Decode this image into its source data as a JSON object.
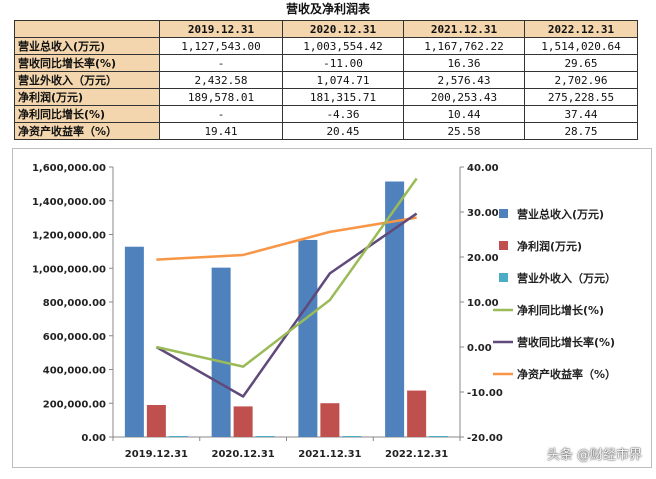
{
  "table": {
    "title": "营收及净利润表",
    "headers": [
      "2019.12.31",
      "2020.12.31",
      "2021.12.31",
      "2022.12.31"
    ],
    "rows": [
      {
        "label": "营业总收入(万元)",
        "values": [
          "1,127,543.00",
          "1,003,554.42",
          "1,167,762.22",
          "1,514,020.64"
        ]
      },
      {
        "label": "营收同比增长率(%)",
        "values": [
          "-",
          "-11.00",
          "16.36",
          "29.65"
        ]
      },
      {
        "label": "营业外收入（万元）",
        "values": [
          "2,432.58",
          "1,074.71",
          "2,576.43",
          "2,702.96"
        ]
      },
      {
        "label": "净利润(万元)",
        "values": [
          "189,578.01",
          "181,315.71",
          "200,253.43",
          "275,228.55"
        ]
      },
      {
        "label": "净利同比增长(%)",
        "values": [
          "-",
          "-4.36",
          "10.44",
          "37.44"
        ]
      },
      {
        "label": "净资产收益率（%）",
        "values": [
          "19.41",
          "20.45",
          "25.58",
          "28.75"
        ]
      }
    ]
  },
  "chart_data": {
    "type": "bar",
    "categories": [
      "2019.12.31",
      "2020.12.31",
      "2021.12.31",
      "2022.12.31"
    ],
    "y_left": {
      "min": 0,
      "max": 1600000,
      "step": 200000,
      "tick_labels": [
        "0.00",
        "200,000.00",
        "400,000.00",
        "600,000.00",
        "800,000.00",
        "1,000,000.00",
        "1,200,000.00",
        "1,400,000.00",
        "1,600,000.00"
      ]
    },
    "y_right": {
      "min": -20,
      "max": 40,
      "step": 10,
      "tick_labels": [
        "-20.00",
        "-10.00",
        "0.00",
        "10.00",
        "20.00",
        "30.00",
        "40.00"
      ]
    },
    "bar_series": [
      {
        "name": "营业总收入(万元)",
        "color": "#4f81bd",
        "values": [
          1127543.0,
          1003554.42,
          1167762.22,
          1514020.64
        ]
      },
      {
        "name": "净利润(万元)",
        "color": "#c0504d",
        "values": [
          189578.01,
          181315.71,
          200253.43,
          275228.55
        ]
      },
      {
        "name": "营业外收入（万元）",
        "color": "#4bacc6",
        "values": [
          2432.58,
          1074.71,
          2576.43,
          2702.96
        ]
      }
    ],
    "line_series": [
      {
        "name": "净利同比增长(%)",
        "color": "#9bbb59",
        "values": [
          0,
          -4.36,
          10.44,
          37.44
        ]
      },
      {
        "name": "营收同比增长率(%)",
        "color": "#604a7b",
        "values": [
          0,
          -11.0,
          16.36,
          29.65
        ]
      },
      {
        "name": "净资产收益率（%）",
        "color": "#f79646",
        "values": [
          19.41,
          20.45,
          25.58,
          28.75
        ]
      }
    ],
    "legend_position": "right",
    "grid": false
  },
  "watermark": "头条 @财经市界"
}
